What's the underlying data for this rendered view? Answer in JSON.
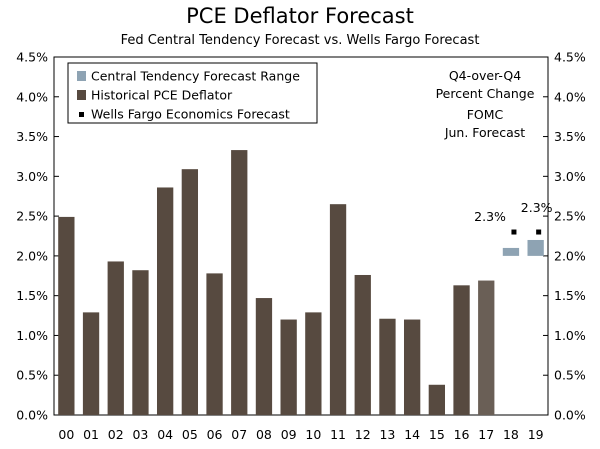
{
  "chart_data": {
    "type": "bar",
    "title": "PCE Deflator Forecast",
    "subtitle": "Fed Central Tendency Forecast vs. Wells Fargo Forecast",
    "categories": [
      "00",
      "01",
      "02",
      "03",
      "04",
      "05",
      "06",
      "07",
      "08",
      "09",
      "10",
      "11",
      "12",
      "13",
      "14",
      "15",
      "16",
      "17",
      "18",
      "19"
    ],
    "series": [
      {
        "name": "Historical PCE Deflator",
        "color": "#574a40",
        "values": [
          2.49,
          1.29,
          1.93,
          1.82,
          2.86,
          3.09,
          1.78,
          3.33,
          1.47,
          1.2,
          1.29,
          2.65,
          1.76,
          1.21,
          1.2,
          0.38,
          1.63,
          1.69,
          null,
          null
        ]
      },
      {
        "name": "Central Tendency Forecast Range",
        "color": "#8ea3b3",
        "ranges": [
          null,
          null,
          null,
          null,
          null,
          null,
          null,
          null,
          null,
          null,
          null,
          null,
          null,
          null,
          null,
          null,
          null,
          null,
          [
            2.0,
            2.1
          ],
          [
            2.0,
            2.2
          ]
        ]
      },
      {
        "name": "Wells Fargo Economics Forecast",
        "color": "#000000",
        "values": [
          null,
          null,
          null,
          null,
          null,
          null,
          null,
          null,
          null,
          null,
          null,
          null,
          null,
          null,
          null,
          null,
          null,
          null,
          2.3,
          2.3
        ],
        "labels": [
          null,
          null,
          null,
          null,
          null,
          null,
          null,
          null,
          null,
          null,
          null,
          null,
          null,
          null,
          null,
          null,
          null,
          null,
          "2.3%",
          "2.3%"
        ]
      }
    ],
    "legend_order": [
      "Central Tendency Forecast Range",
      "Historical PCE Deflator",
      "Wells Fargo Economics Forecast"
    ],
    "ylim": [
      0,
      4.5
    ],
    "yticks": [
      "0.0%",
      "0.5%",
      "1.0%",
      "1.5%",
      "2.0%",
      "2.5%",
      "3.0%",
      "3.5%",
      "4.0%",
      "4.5%"
    ],
    "ytick_values": [
      0,
      0.5,
      1.0,
      1.5,
      2.0,
      2.5,
      3.0,
      3.5,
      4.0,
      4.5
    ],
    "annotation": [
      "Q4-over-Q4",
      "Percent Change",
      "FOMC",
      "Jun. Forecast"
    ],
    "legend_position": "top-left",
    "grid": false
  }
}
